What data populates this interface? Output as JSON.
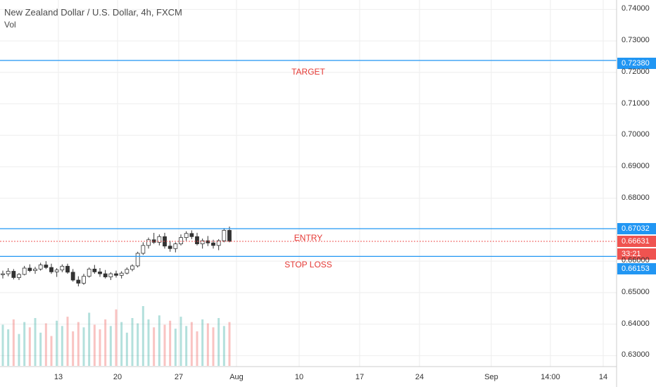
{
  "header": {
    "title": "New Zealand Dollar / U.S. Dollar, 4h, FXCM",
    "volume_label": "Vol"
  },
  "levels": {
    "target": {
      "label": "TARGET",
      "price": 0.7238,
      "price_label": "0.72380",
      "color": "#2196f3"
    },
    "entry": {
      "label": "ENTRY",
      "price": 0.67032,
      "price_label": "0.67032",
      "color": "#2196f3"
    },
    "stop_loss": {
      "label": "STOP LOSS",
      "price": 0.66153,
      "price_label": "0.66153",
      "color": "#2196f3"
    },
    "current": {
      "price": 0.66631,
      "price_label": "0.66631",
      "countdown": "33:21",
      "color": "#ef5350"
    }
  },
  "chart_data": {
    "type": "candlestick",
    "y_ticks": [
      "0.74000",
      "0.73000",
      "0.72000",
      "0.71000",
      "0.70000",
      "0.69000",
      "0.68000",
      "0.66000",
      "0.65000",
      "0.64000",
      "0.63000"
    ],
    "y_range": [
      0.6265,
      0.743
    ],
    "x_ticks": [
      "13",
      "20",
      "27",
      "Aug",
      "10",
      "17",
      "24",
      "Sep",
      "14:00",
      "14"
    ],
    "grid": true,
    "up_color": "#26a69a",
    "down_color": "#ef5350",
    "candles": [
      [
        0.6557,
        0.657,
        0.6545,
        0.656
      ],
      [
        0.656,
        0.6578,
        0.6552,
        0.6568
      ],
      [
        0.6568,
        0.6575,
        0.6542,
        0.6548
      ],
      [
        0.6548,
        0.6562,
        0.654,
        0.6558
      ],
      [
        0.6558,
        0.6585,
        0.6555,
        0.6578
      ],
      [
        0.6578,
        0.659,
        0.6565,
        0.657
      ],
      [
        0.657,
        0.6582,
        0.656,
        0.6575
      ],
      [
        0.6575,
        0.6595,
        0.657,
        0.6588
      ],
      [
        0.6588,
        0.66,
        0.6575,
        0.658
      ],
      [
        0.658,
        0.6592,
        0.656,
        0.6566
      ],
      [
        0.6566,
        0.6578,
        0.655,
        0.6572
      ],
      [
        0.6572,
        0.659,
        0.6565,
        0.6584
      ],
      [
        0.6584,
        0.6592,
        0.656,
        0.6565
      ],
      [
        0.6565,
        0.6575,
        0.6535,
        0.654
      ],
      [
        0.654,
        0.6552,
        0.652,
        0.653
      ],
      [
        0.653,
        0.656,
        0.6525,
        0.6552
      ],
      [
        0.6552,
        0.658,
        0.6548,
        0.6575
      ],
      [
        0.6575,
        0.6588,
        0.656,
        0.6566
      ],
      [
        0.6566,
        0.6578,
        0.655,
        0.656
      ],
      [
        0.656,
        0.6572,
        0.6545,
        0.655
      ],
      [
        0.655,
        0.6565,
        0.654,
        0.656
      ],
      [
        0.656,
        0.657,
        0.6548,
        0.6555
      ],
      [
        0.6555,
        0.6568,
        0.6545,
        0.6562
      ],
      [
        0.6562,
        0.658,
        0.6558,
        0.6574
      ],
      [
        0.6574,
        0.659,
        0.6568,
        0.6585
      ],
      [
        0.6585,
        0.663,
        0.658,
        0.6625
      ],
      [
        0.6625,
        0.666,
        0.662,
        0.665
      ],
      [
        0.665,
        0.6675,
        0.664,
        0.6668
      ],
      [
        0.6668,
        0.669,
        0.6655,
        0.666
      ],
      [
        0.666,
        0.6685,
        0.665,
        0.6678
      ],
      [
        0.6678,
        0.669,
        0.664,
        0.6648
      ],
      [
        0.6648,
        0.6665,
        0.663,
        0.664
      ],
      [
        0.664,
        0.666,
        0.6628,
        0.6655
      ],
      [
        0.6655,
        0.6685,
        0.665,
        0.6675
      ],
      [
        0.6675,
        0.6695,
        0.6665,
        0.6688
      ],
      [
        0.6688,
        0.6698,
        0.667,
        0.6678
      ],
      [
        0.6678,
        0.669,
        0.665,
        0.6655
      ],
      [
        0.6655,
        0.6672,
        0.664,
        0.6665
      ],
      [
        0.6665,
        0.668,
        0.6648,
        0.6658
      ],
      [
        0.6658,
        0.6668,
        0.664,
        0.665
      ],
      [
        0.665,
        0.667,
        0.6635,
        0.6665
      ],
      [
        0.6665,
        0.6705,
        0.666,
        0.6698
      ],
      [
        0.6698,
        0.671,
        0.666,
        0.6663
      ]
    ],
    "volumes": [
      62,
      55,
      70,
      48,
      66,
      58,
      72,
      50,
      64,
      45,
      68,
      60,
      74,
      52,
      66,
      58,
      80,
      62,
      55,
      70,
      60,
      85,
      66,
      50,
      72,
      64,
      90,
      70,
      58,
      76,
      62,
      68,
      56,
      74,
      60,
      66,
      52,
      70,
      64,
      58,
      72,
      60,
      66
    ]
  }
}
